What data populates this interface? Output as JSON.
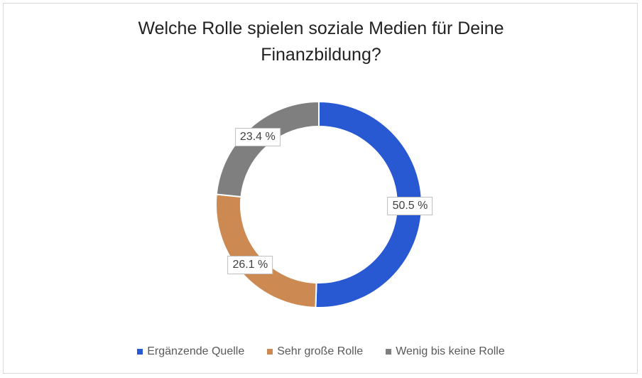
{
  "chart_data": {
    "type": "pie",
    "variant": "donut",
    "title_lines": [
      "Welche Rolle spielen soziale Medien für Deine",
      "Finanzbildung?"
    ],
    "categories": [
      "Ergänzende Quelle",
      "Sehr große Rolle",
      "Wenig bis keine Rolle"
    ],
    "values": [
      50.5,
      26.1,
      23.4
    ],
    "data_labels": [
      "50.5 %",
      "26.1 %",
      "23.4 %"
    ],
    "colors": [
      "#2858d2",
      "#cc8a52",
      "#7f7f7f"
    ],
    "legend_position": "bottom"
  }
}
